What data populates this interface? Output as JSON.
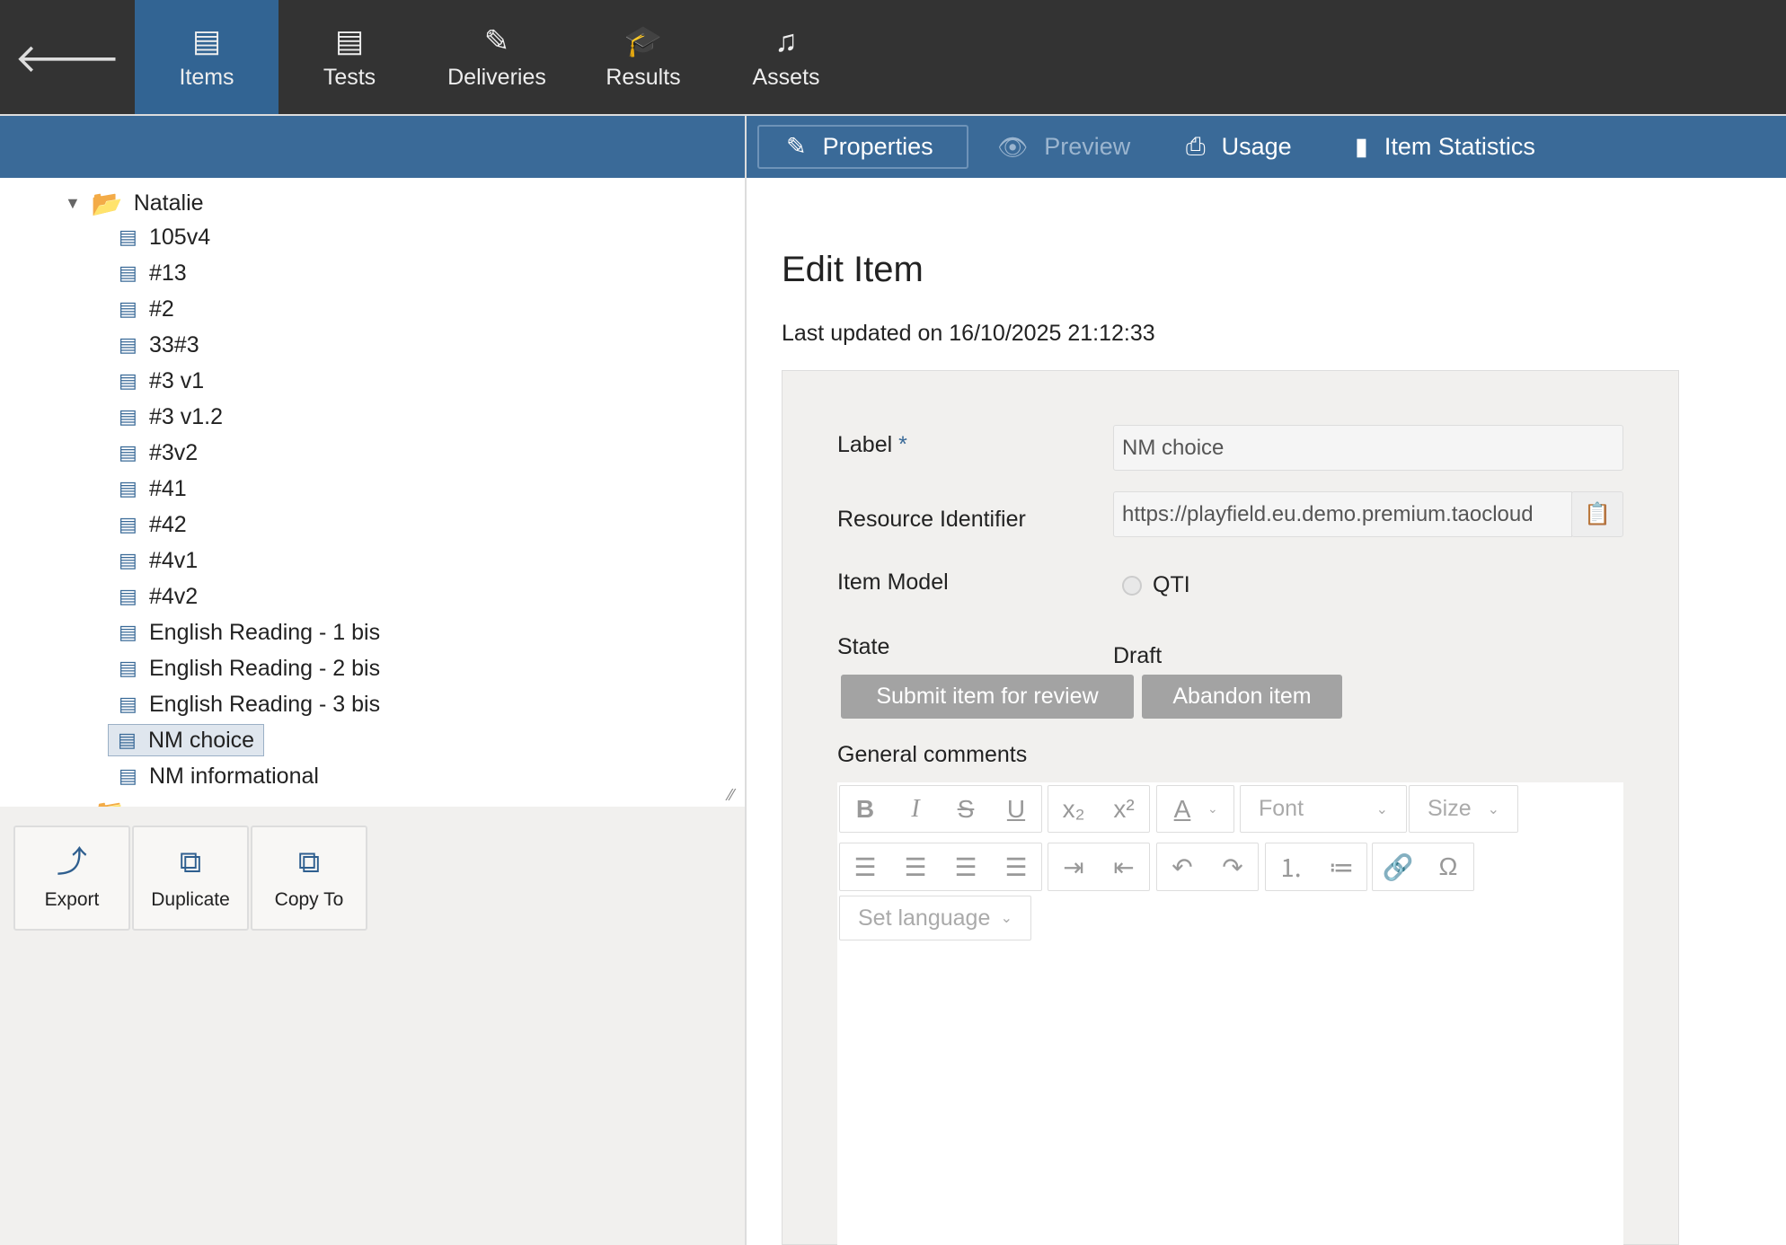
{
  "nav": {
    "back_icon": "arrow-left-icon",
    "tabs": [
      {
        "label": "Items",
        "icon": "items-icon",
        "active": true
      },
      {
        "label": "Tests",
        "icon": "tests-icon"
      },
      {
        "label": "Deliveries",
        "icon": "deliveries-icon"
      },
      {
        "label": "Results",
        "icon": "results-icon"
      },
      {
        "label": "Assets",
        "icon": "assets-icon"
      }
    ]
  },
  "right_tabs": [
    {
      "label": "Properties",
      "icon": "pencil-icon",
      "active": true
    },
    {
      "label": "Preview",
      "icon": "eye-icon",
      "disabled": true
    },
    {
      "label": "Usage",
      "icon": "usage-icon"
    },
    {
      "label": "Item Statistics",
      "icon": "bar-chart-icon"
    }
  ],
  "tree": {
    "folder": "Natalie",
    "items": [
      "105v4",
      "#13",
      "#2",
      "33#3",
      "#3 v1",
      "#3 v1.2",
      "#3v2",
      "#41",
      "#42",
      "#4v1",
      "#4v2",
      "English Reading - 1 bis",
      "English Reading - 2 bis",
      "English Reading - 3 bis",
      "NM choice",
      "NM informational"
    ],
    "selected": "NM choice"
  },
  "actions": [
    {
      "label": "Export",
      "icon": "export-icon"
    },
    {
      "label": "Duplicate",
      "icon": "duplicate-icon"
    },
    {
      "label": "Copy To",
      "icon": "copy-to-icon"
    }
  ],
  "main": {
    "title": "Edit Item",
    "last_updated": "Last updated on 16/10/2025 21:12:33",
    "label_label": "Label",
    "required_mark": "*",
    "label_value": "NM choice",
    "resource_label": "Resource Identifier",
    "resource_value": "https://playfield.eu.demo.premium.taocloud",
    "model_label": "Item Model",
    "model_value": "QTI",
    "state_label": "State",
    "state_value": "Draft",
    "submit": "Submit item for review",
    "abandon": "Abandon item",
    "comments_label": "General comments",
    "font_placeholder": "Font",
    "size_placeholder": "Size",
    "language_placeholder": "Set language"
  },
  "colors": {
    "topbar": "#333333",
    "accent": "#326493",
    "bluebar": "#3a6a98"
  }
}
